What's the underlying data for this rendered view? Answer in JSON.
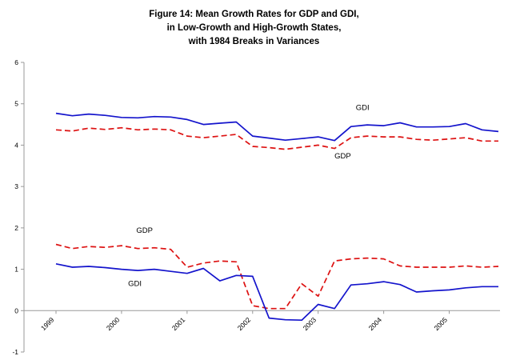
{
  "title": {
    "line1": "Figure 14: Mean Growth Rates for GDP and GDI,",
    "line2": "in Low-Growth and High-Growth States,",
    "line3": "with 1984 Breaks in Variances"
  },
  "chart_data": {
    "type": "line",
    "title": "Figure 14: Mean Growth Rates for GDP and GDI, in Low-Growth and High-Growth States, with 1984 Breaks in Variances",
    "x_unit": "quarterly",
    "x_start": "1999Q1",
    "x_tick_labels": [
      "1999",
      "2000",
      "2001",
      "2002",
      "2003",
      "2004",
      "2005"
    ],
    "x_tick_indices": [
      0,
      4,
      8,
      12,
      16,
      20,
      24
    ],
    "ylim": [
      -1,
      6
    ],
    "y_ticks": [
      "6",
      "5",
      "4",
      "3",
      "2",
      "1",
      "0",
      "-1"
    ],
    "grid": false,
    "legend_position": "none",
    "axis_color": "#999999",
    "series": [
      {
        "id": "gdi-high-growth",
        "name": "GDI (high-growth state)",
        "color": "#1414cc",
        "dash": "solid",
        "values": [
          4.77,
          4.71,
          4.75,
          4.72,
          4.67,
          4.66,
          4.69,
          4.68,
          4.62,
          4.5,
          4.53,
          4.56,
          4.22,
          4.17,
          4.12,
          4.16,
          4.2,
          4.11,
          4.45,
          4.49,
          4.47,
          4.54,
          4.44,
          4.44,
          4.45,
          4.52,
          4.37,
          4.33
        ]
      },
      {
        "id": "gdp-high-growth",
        "name": "GDP (high-growth state)",
        "color": "#dd1111",
        "dash": "dashed",
        "values": [
          4.37,
          4.34,
          4.41,
          4.38,
          4.42,
          4.37,
          4.39,
          4.37,
          4.22,
          4.18,
          4.22,
          4.26,
          3.97,
          3.94,
          3.9,
          3.95,
          4.0,
          3.92,
          4.18,
          4.22,
          4.2,
          4.2,
          4.14,
          4.12,
          4.15,
          4.18,
          4.1,
          4.1
        ]
      },
      {
        "id": "gdp-low-growth",
        "name": "GDP (low-growth state)",
        "color": "#dd1111",
        "dash": "dashed",
        "values": [
          1.6,
          1.5,
          1.55,
          1.53,
          1.57,
          1.5,
          1.52,
          1.48,
          1.05,
          1.15,
          1.2,
          1.18,
          0.12,
          0.05,
          0.05,
          0.65,
          0.35,
          1.2,
          1.25,
          1.27,
          1.25,
          1.08,
          1.05,
          1.05,
          1.05,
          1.08,
          1.05,
          1.07
        ]
      },
      {
        "id": "gdi-low-growth",
        "name": "GDI (low-growth state)",
        "color": "#1414cc",
        "dash": "solid",
        "values": [
          1.13,
          1.05,
          1.07,
          1.04,
          1.0,
          0.97,
          1.0,
          0.95,
          0.9,
          1.02,
          0.72,
          0.85,
          0.83,
          -0.18,
          -0.22,
          -0.23,
          0.15,
          0.05,
          0.62,
          0.65,
          0.7,
          0.63,
          0.45,
          0.48,
          0.5,
          0.55,
          0.58,
          0.58
        ]
      }
    ],
    "annotations": [
      {
        "text": "GDI",
        "x": 18.3,
        "y": 4.85
      },
      {
        "text": "GDP",
        "x": 17.0,
        "y": 3.68
      },
      {
        "text": "GDP",
        "x": 4.9,
        "y": 1.88
      },
      {
        "text": "GDI",
        "x": 4.4,
        "y": 0.6
      }
    ]
  }
}
